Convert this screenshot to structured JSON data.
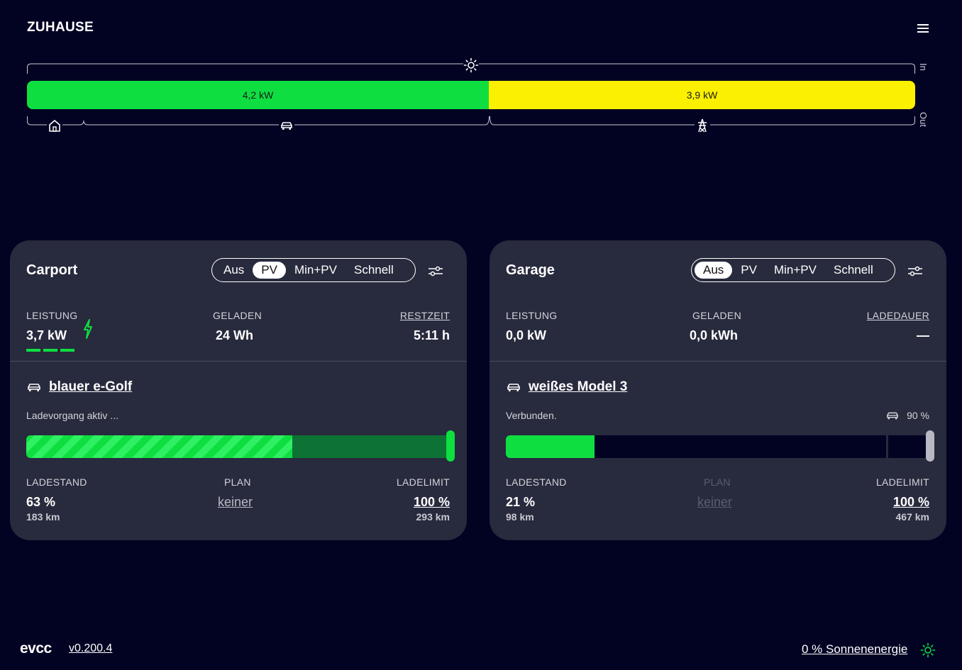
{
  "header": {
    "title": "ZUHAUSE",
    "menu_icon": "hamburger-icon"
  },
  "energyflow": {
    "pv_label": "4,2 kW",
    "grid_label": "3,9 kW",
    "in_label": "In",
    "out_label": "Out",
    "pv_fraction": 0.52,
    "colors": {
      "pv": "#0fde41",
      "grid": "#faf000"
    },
    "icons": {
      "top": "sun-icon",
      "home": "house-icon",
      "loadpoint": "car-icon",
      "grid": "power-pylon-icon"
    }
  },
  "loadpoints": [
    {
      "title": "Carport",
      "modes": [
        "Aus",
        "PV",
        "Min+PV",
        "Schnell"
      ],
      "active_mode": "PV",
      "power_label": "LEISTUNG",
      "power_value": "3,7 kW",
      "charged_label": "GELADEN",
      "charged_value": "24 Wh",
      "time_label": "RESTZEIT",
      "time_value": "5:11 h",
      "vehicle_name": "blauer e-Golf",
      "status": "Ladevorgang aktiv ...",
      "soc_label": "LADESTAND",
      "soc_value": "63 %",
      "soc_range": "183 km",
      "plan_label": "PLAN",
      "plan_value": "keiner",
      "limit_label": "LADELIMIT",
      "limit_value": "100 %",
      "limit_range": "293 km",
      "soc_fraction": 0.63,
      "limit_fraction": 1.0
    },
    {
      "title": "Garage",
      "modes": [
        "Aus",
        "PV",
        "Min+PV",
        "Schnell"
      ],
      "active_mode": "Aus",
      "power_label": "LEISTUNG",
      "power_value": "0,0 kW",
      "charged_label": "GELADEN",
      "charged_value": "0,0 kWh",
      "time_label": "LADEDAUER",
      "time_value": "—",
      "vehicle_name": "weißes Model 3",
      "status": "Verbunden.",
      "vehicle_limit": "90 %",
      "soc_label": "LADESTAND",
      "soc_value": "21 %",
      "soc_range": "98 km",
      "plan_label": "PLAN",
      "plan_value": "keiner",
      "limit_label": "LADELIMIT",
      "limit_value": "100 %",
      "limit_range": "467 km",
      "soc_fraction": 0.21,
      "vehicle_limit_fraction": 0.9,
      "limit_fraction": 1.0
    }
  ],
  "footer": {
    "logo": "evcc",
    "version": "v0.200.4",
    "solar_share": "0 % Sonnenenergie"
  }
}
